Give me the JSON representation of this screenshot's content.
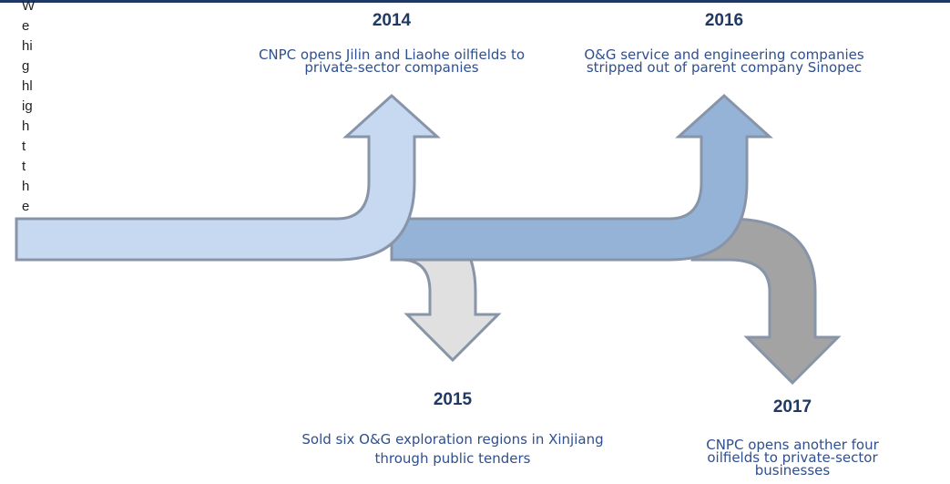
{
  "side_text": "We highlight the",
  "events": [
    {
      "year": "2014",
      "description": "CNPC opens Jilin and Liaohe oilfields to private-sector companies"
    },
    {
      "year": "2015",
      "description": "Sold six O&G exploration regions in Xinjiang through public tenders"
    },
    {
      "year": "2016",
      "description": "O&G service and engineering companies stripped out of parent company Sinopec"
    },
    {
      "year": "2017",
      "description": "CNPC opens another four oilfields to private-sector businesses"
    }
  ]
}
